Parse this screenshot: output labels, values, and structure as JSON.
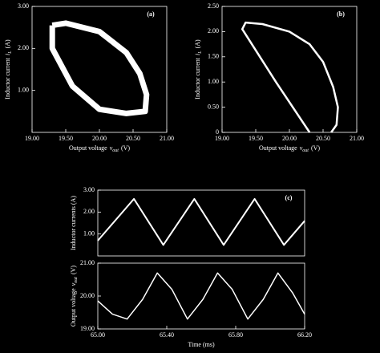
{
  "chart_data": [
    {
      "type": "line",
      "panel_label": "(a)",
      "x_label": [
        "Output voltage",
        "v",
        "out",
        "(V)"
      ],
      "y_label": [
        "Inductor current",
        "i",
        "L",
        "(A)"
      ],
      "xlim": [
        19.0,
        21.0
      ],
      "ylim": [
        0,
        3.0
      ],
      "xticks": [
        {
          "value": 19.0,
          "label": "19.00"
        },
        {
          "value": 19.5,
          "label": "19.50"
        },
        {
          "value": 20.0,
          "label": "20.00"
        },
        {
          "value": 20.5,
          "label": "20.50"
        },
        {
          "value": 21.0,
          "label": "21.00"
        }
      ],
      "yticks": [
        {
          "value": 1.0,
          "label": "1.00"
        },
        {
          "value": 2.0,
          "label": "2.00"
        },
        {
          "value": 3.0,
          "label": "3.00"
        }
      ],
      "series": [
        {
          "color": "#ffffff",
          "x": [
            19.3,
            19.5,
            20.0,
            20.4,
            20.6,
            20.7,
            20.68,
            20.4,
            20.0,
            19.6,
            19.3,
            19.3
          ],
          "values": [
            2.55,
            2.6,
            2.4,
            1.9,
            1.4,
            0.9,
            0.5,
            0.45,
            0.55,
            1.1,
            2.0,
            2.55
          ]
        }
      ]
    },
    {
      "type": "line",
      "panel_label": "(b)",
      "x_label": [
        "Output voltage",
        "v",
        "out",
        "(V)"
      ],
      "y_label": [
        "Inductor current",
        "i",
        "L",
        "(A)"
      ],
      "xlim": [
        19.0,
        21.0
      ],
      "ylim": [
        0,
        2.5
      ],
      "xticks": [
        {
          "value": 19.0,
          "label": "19.00"
        },
        {
          "value": 19.5,
          "label": "19.50"
        },
        {
          "value": 20.0,
          "label": "20.00"
        },
        {
          "value": 20.5,
          "label": "20.50"
        },
        {
          "value": 21.0,
          "label": "21.00"
        }
      ],
      "yticks": [
        0,
        {
          "value": 0.5,
          "label": "0.50"
        },
        {
          "value": 1.0,
          "label": "1.00"
        },
        {
          "value": 1.5,
          "label": "1.50"
        },
        {
          "value": 2.0,
          "label": "2.00"
        },
        {
          "value": 2.5,
          "label": "2.50"
        }
      ],
      "series": [
        {
          "color": "#ffffff",
          "x": [
            20.3,
            19.8,
            19.3,
            19.35,
            19.6,
            20.0,
            20.3,
            20.5,
            20.65,
            20.72,
            20.7,
            20.62
          ],
          "values": [
            0,
            1.0,
            2.05,
            2.18,
            2.15,
            2.0,
            1.75,
            1.4,
            0.9,
            0.5,
            0.15,
            0
          ]
        }
      ]
    },
    {
      "type": "line",
      "panel_label": "(c)",
      "y_label": [
        "Inductor currents (A)"
      ],
      "xlim": [
        65.0,
        66.2
      ],
      "ylim": [
        0,
        3.0
      ],
      "yticks": [
        {
          "value": 1.0,
          "label": "1.00"
        },
        {
          "value": 2.0,
          "label": "2.00"
        },
        {
          "value": 3.0,
          "label": "3.00"
        }
      ],
      "series": [
        {
          "color": "#ffffff",
          "x": [
            65.0,
            65.21,
            65.38,
            65.56,
            65.73,
            65.91,
            66.08,
            66.2
          ],
          "values": [
            0.7,
            2.6,
            0.5,
            2.6,
            0.5,
            2.6,
            0.5,
            1.6
          ]
        }
      ]
    },
    {
      "type": "line",
      "x_label": [
        "Time (ms)"
      ],
      "y_label": [
        "Output voltage",
        "v",
        "out",
        "(V)"
      ],
      "xlim": [
        65.0,
        66.2
      ],
      "ylim": [
        19.0,
        21.0
      ],
      "xticks": [
        {
          "value": 65.0,
          "label": "65.00"
        },
        {
          "value": 65.4,
          "label": "65.40"
        },
        {
          "value": 65.8,
          "label": "65.80"
        },
        {
          "value": 66.2,
          "label": "66.20"
        }
      ],
      "yticks": [
        {
          "value": 19.0,
          "label": "19.00"
        },
        {
          "value": 20.0,
          "label": "20.00"
        },
        {
          "value": 21.0,
          "label": "21.00"
        }
      ],
      "series": [
        {
          "color": "#ffffff",
          "x": [
            65.0,
            65.085,
            65.17,
            65.26,
            65.345,
            65.43,
            65.52,
            65.61,
            65.695,
            65.78,
            65.87,
            65.96,
            66.045,
            66.13,
            66.2
          ],
          "values": [
            19.85,
            19.45,
            19.3,
            19.9,
            20.7,
            20.2,
            19.3,
            19.9,
            20.7,
            20.2,
            19.3,
            19.9,
            20.7,
            20.1,
            19.45
          ]
        }
      ]
    }
  ]
}
